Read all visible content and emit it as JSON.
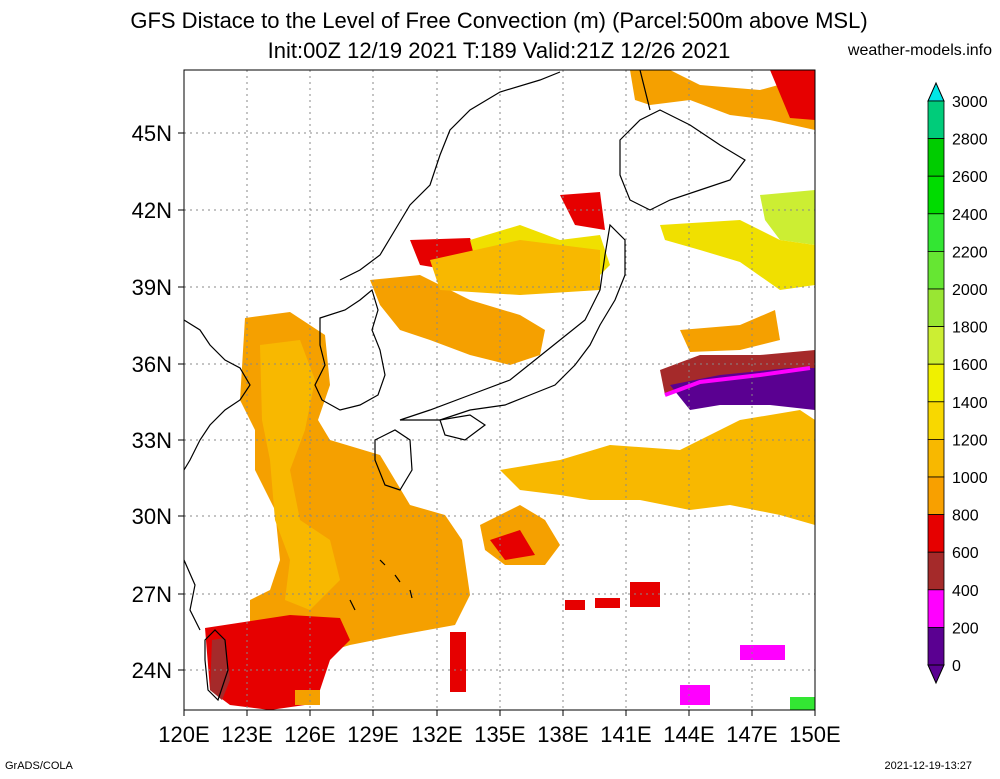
{
  "header": {
    "title_line1": "GFS Distace to the Level of Free Convection (m) (Parcel:500m above MSL)",
    "title_line2": "Init:00Z 12/19 2021 T:189 Valid:21Z 12/26 2021",
    "site": "weather-models.info"
  },
  "footer": {
    "left": "GrADS/COLA",
    "right": "2021-12-19-13:27"
  },
  "map": {
    "lon_labels": [
      "120E",
      "123E",
      "126E",
      "129E",
      "132E",
      "135E",
      "138E",
      "141E",
      "144E",
      "147E",
      "150E"
    ],
    "lat_labels": [
      "45N",
      "42N",
      "39N",
      "36N",
      "33N",
      "30N",
      "27N",
      "24N"
    ]
  },
  "colorbar": {
    "labels": [
      "3000",
      "2800",
      "2600",
      "2400",
      "2200",
      "2000",
      "1800",
      "1600",
      "1400",
      "1200",
      "1000",
      "800",
      "600",
      "400",
      "200",
      "0"
    ],
    "colors": [
      "#00e6e6",
      "#00cc7a",
      "#00cc00",
      "#00dc00",
      "#33e633",
      "#66e633",
      "#99e633",
      "#ccee33",
      "#f0f000",
      "#f8d800",
      "#f8b800",
      "#f8a000",
      "#e60000",
      "#a52a2a",
      "#ff00ff",
      "#5a0091"
    ]
  }
}
